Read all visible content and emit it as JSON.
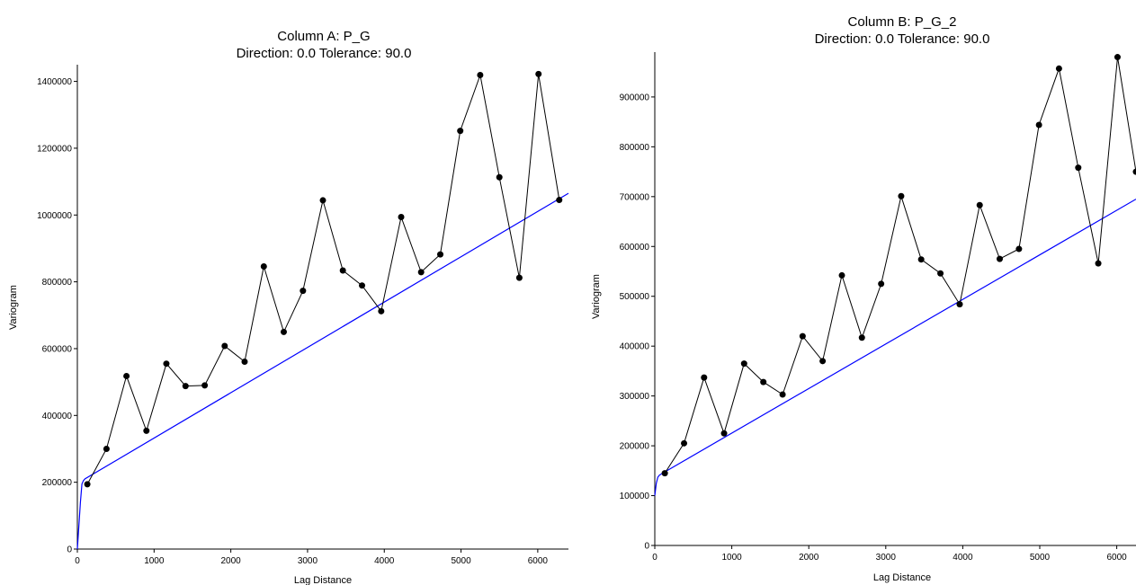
{
  "chart_data": [
    {
      "type": "line",
      "title": "Column A:  P_G",
      "subtitle": "Direction: 0.0   Tolerance: 90.0",
      "xlabel": "Lag Distance",
      "ylabel": "Variogram",
      "xlim": [
        0,
        6400
      ],
      "ylim": [
        0,
        1450000
      ],
      "xticks": [
        0,
        1000,
        2000,
        3000,
        4000,
        5000,
        6000
      ],
      "yticks": [
        0,
        200000,
        400000,
        600000,
        800000,
        1000000,
        1200000,
        1400000
      ],
      "grid": false,
      "experimental": {
        "x": [
          130,
          380,
          640,
          900,
          1160,
          1410,
          1660,
          1920,
          2180,
          2430,
          2690,
          2940,
          3200,
          3460,
          3710,
          3960,
          4220,
          4480,
          4730,
          4990,
          5250,
          5500,
          5760,
          6010,
          6280
        ],
        "y": [
          194000,
          300000,
          518000,
          354000,
          555000,
          488000,
          490000,
          608000,
          561000,
          846000,
          650000,
          773000,
          1044000,
          834000,
          789000,
          712000,
          994000,
          829000,
          882000,
          1252000,
          1419000,
          1113000,
          812000,
          1422000,
          1045000
        ]
      },
      "model": {
        "x": [
          0,
          40,
          60,
          80,
          100,
          6400
        ],
        "y": [
          0,
          140000,
          195000,
          205000,
          210000,
          1065000
        ]
      },
      "colors": {
        "experimental": "#000000",
        "model": "#0000ff"
      }
    },
    {
      "type": "line",
      "title": "Column B:  P_G_2",
      "subtitle": "Direction: 0.0   Tolerance: 90.0",
      "xlabel": "Lag Distance",
      "ylabel": "Variogram",
      "xlim": [
        0,
        6250
      ],
      "ylim": [
        0,
        990000
      ],
      "xticks": [
        0,
        1000,
        2000,
        3000,
        4000,
        5000,
        6000
      ],
      "yticks": [
        0,
        100000,
        200000,
        300000,
        400000,
        500000,
        600000,
        700000,
        800000,
        900000
      ],
      "grid": false,
      "experimental": {
        "x": [
          130,
          380,
          640,
          900,
          1160,
          1410,
          1660,
          1920,
          2180,
          2430,
          2690,
          2940,
          3200,
          3460,
          3710,
          3960,
          4220,
          4480,
          4730,
          4990,
          5250,
          5500,
          5760,
          6010,
          6250
        ],
        "y": [
          145000,
          205000,
          337000,
          225000,
          365000,
          328000,
          303000,
          420000,
          370000,
          542000,
          417000,
          525000,
          701000,
          574000,
          546000,
          484000,
          683000,
          575000,
          595000,
          844000,
          957000,
          758000,
          566000,
          980000,
          750000
        ]
      },
      "model": {
        "x": [
          0,
          20,
          40,
          60,
          100,
          6250
        ],
        "y": [
          100000,
          125000,
          137000,
          141000,
          145000,
          695000
        ]
      },
      "colors": {
        "experimental": "#000000",
        "model": "#0000ff"
      }
    }
  ]
}
